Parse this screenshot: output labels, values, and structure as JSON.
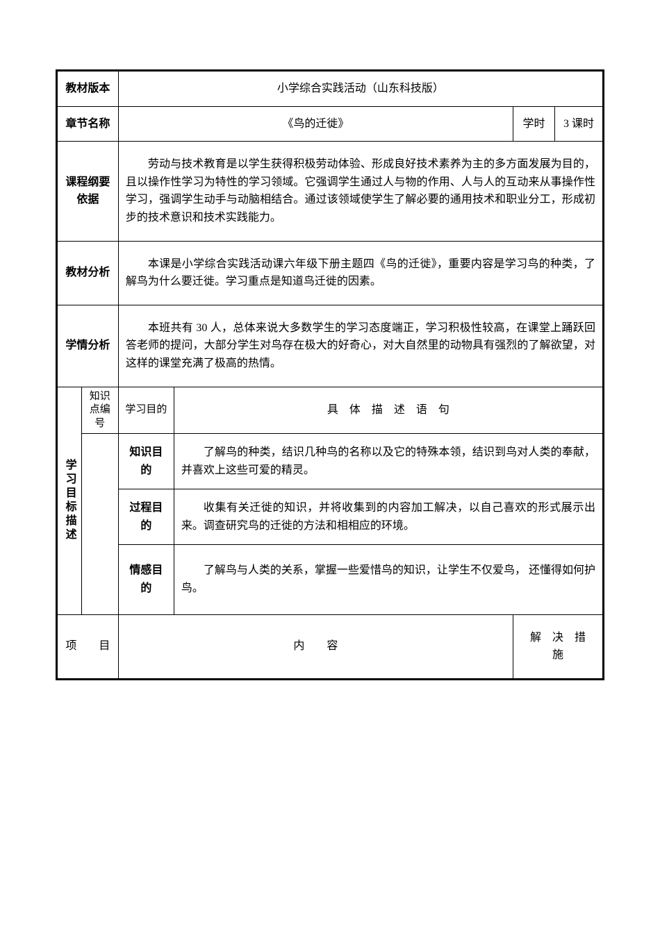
{
  "row1": {
    "label": "教材版本",
    "value": "小学综合实践活动（山东科技版）"
  },
  "row2": {
    "label": "章节名称",
    "value": "《鸟的迁徙》",
    "xueshi_label": "学时",
    "xueshi_value": "3 课时"
  },
  "row3": {
    "label": "课程纲要依据",
    "value": "劳动与技术教育是以学生获得积极劳动体验、形成良好技术素养为主的多方面发展为目的，且以操作性学习为特性的学习领域。它强调学生通过人与物的作用、人与人的互动来从事操作性学习，强调学生动手与动脑相结合。通过该领域使学生了解必要的通用技术和职业分工，形成初步的技术意识和技术实践能力。"
  },
  "row4": {
    "label": "教材分析",
    "value": "本课是小学综合实践活动课六年级下册主题四《鸟的迁徙》，重要内容是学习鸟的种类，了解鸟为什么要迁徙。学习重点是知道鸟迁徙的因素。"
  },
  "row5": {
    "label": "学情分析",
    "value": "本班共有 30 人，总体来说大多数学生的学习态度端正，学习积极性较高，在课堂上踊跃回答老师的提问，大部分学生对鸟存在极大的好奇心，对大自然里的动物具有强烈的了解欲望，对这样的课堂充满了极高的热情。"
  },
  "goals": {
    "section_label": "学习目标描述",
    "col1_header": "知识点编　号",
    "col2_header": "学习目的",
    "col3_header": "具　体　描　述　语　句",
    "g1_label": "知识目的",
    "g1_text": "了解鸟的种类，结识几种鸟的名称以及它的特殊本领，结识到鸟对人类的奉献，并喜欢上这些可爱的精灵。",
    "g2_label": "过程目的",
    "g2_text": "收集有关迁徙的知识，并将收集到的内容加工解决，以自己喜欢的形式展示出来。调查研究鸟的迁徙的方法和相相应的环境。",
    "g3_label": "情感目的",
    "g3_text": "了解鸟与人类的关系，掌握一些爱惜鸟的知识，让学生不仅爱鸟， 还懂得如何护鸟。"
  },
  "bottom": {
    "col1": "项　　目",
    "col2": "内　　容",
    "col3": "解　决　措　施"
  },
  "colors": {
    "border": "#000000",
    "background": "#ffffff",
    "text": "#000000"
  },
  "typography": {
    "font_family": "SimSun",
    "base_fontsize": 16
  }
}
